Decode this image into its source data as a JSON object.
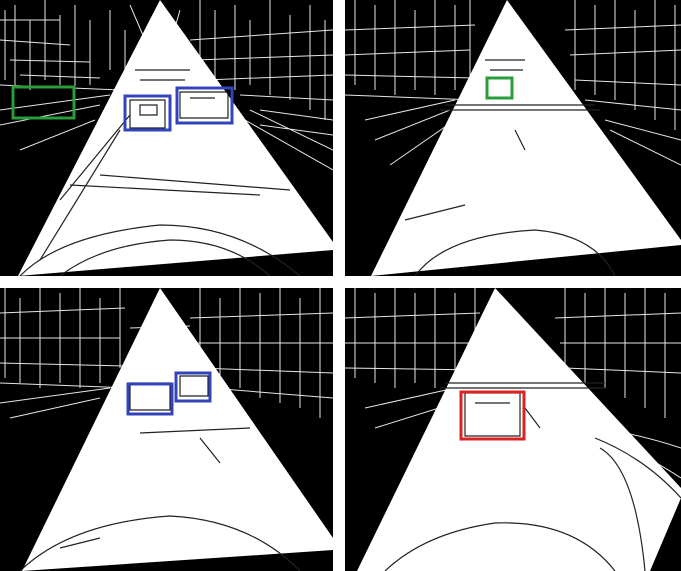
{
  "figure": {
    "panels": [
      {
        "id": "top-left",
        "detections": [
          {
            "label_color": "#2a9d3a",
            "kind": "green-box"
          },
          {
            "label_color": "#3344bb",
            "kind": "blue-box"
          },
          {
            "label_color": "#3344bb",
            "kind": "blue-box"
          }
        ]
      },
      {
        "id": "top-right",
        "detections": [
          {
            "label_color": "#2a9d3a",
            "kind": "green-box"
          }
        ]
      },
      {
        "id": "bottom-left",
        "detections": [
          {
            "label_color": "#3344bb",
            "kind": "blue-box"
          },
          {
            "label_color": "#3344bb",
            "kind": "blue-box"
          }
        ]
      },
      {
        "id": "bottom-right",
        "detections": [
          {
            "label_color": "#dd2222",
            "kind": "red-box"
          }
        ]
      }
    ],
    "colors": {
      "green": "#2a9d3a",
      "blue": "#3344bb",
      "red": "#dd2222",
      "road": "#ffffff",
      "background": "#000000",
      "edges": "#e6e6e6"
    }
  }
}
